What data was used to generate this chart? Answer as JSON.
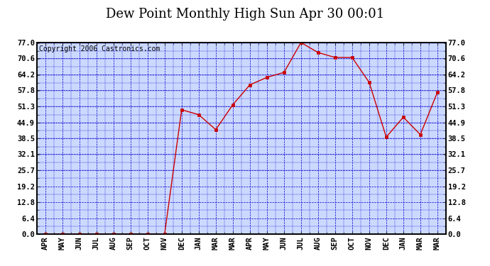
{
  "title": "Dew Point Monthly High Sun Apr 30 00:01",
  "copyright": "Copyright 2006 Castronics.com",
  "x_labels": [
    "APR",
    "MAY",
    "JUN",
    "JUL",
    "AUG",
    "SEP",
    "OCT",
    "NOV",
    "DEC",
    "JAN",
    "MAR",
    "MAR",
    "APR",
    "MAY",
    "JUN",
    "JUL",
    "AUG",
    "SEP",
    "OCT",
    "NOV",
    "DEC",
    "JAN",
    "MAR",
    "MAR"
  ],
  "y_values": [
    0.0,
    0.0,
    0.0,
    0.0,
    0.0,
    0.0,
    0.0,
    0.0,
    50.0,
    48.0,
    42.0,
    52.0,
    60.0,
    63.0,
    65.0,
    77.0,
    73.0,
    71.0,
    71.0,
    61.0,
    39.0,
    47.0,
    40.0,
    57.0
  ],
  "y_ticks": [
    0.0,
    6.4,
    12.8,
    19.2,
    25.7,
    32.1,
    38.5,
    44.9,
    51.3,
    57.8,
    64.2,
    70.6,
    77.0
  ],
  "y_min": 0.0,
  "y_max": 77.0,
  "line_color": "#cc0000",
  "marker_color": "#cc0000",
  "bg_color": "#ccd9ff",
  "grid_color": "#0000cc",
  "border_color": "#000000",
  "title_fontsize": 13,
  "copyright_fontsize": 7,
  "tick_fontsize": 7.5
}
